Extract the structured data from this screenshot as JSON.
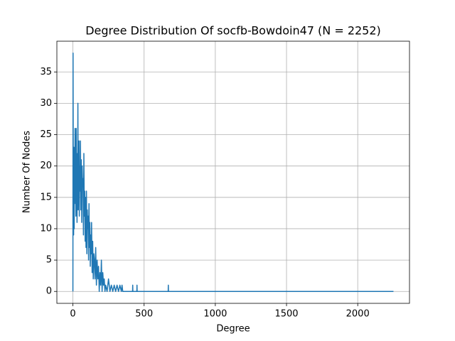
{
  "chart_data": {
    "type": "line",
    "title": "Degree Distribution Of socfb-Bowdoin47 (N = 2252)",
    "xlabel": "Degree",
    "ylabel": "Number Of Nodes",
    "x": [
      0,
      1,
      3,
      5,
      7,
      9,
      11,
      13,
      15,
      17,
      19,
      21,
      23,
      25,
      27,
      29,
      31,
      33,
      35,
      37,
      39,
      41,
      43,
      45,
      47,
      50,
      53,
      56,
      59,
      62,
      65,
      68,
      71,
      74,
      77,
      80,
      83,
      86,
      89,
      92,
      95,
      98,
      101,
      104,
      107,
      110,
      113,
      116,
      119,
      122,
      125,
      128,
      131,
      135,
      139,
      143,
      147,
      151,
      155,
      160,
      165,
      170,
      175,
      180,
      185,
      190,
      195,
      200,
      205,
      210,
      215,
      220,
      225,
      230,
      240,
      250,
      260,
      270,
      280,
      290,
      300,
      310,
      320,
      330,
      340,
      345,
      350,
      419,
      420,
      421,
      449,
      450,
      451,
      669,
      670,
      671,
      2251
    ],
    "values": [
      0,
      38,
      12,
      9,
      23,
      10,
      22,
      14,
      26,
      15,
      25,
      12,
      26,
      16,
      22,
      11,
      20,
      14,
      30,
      13,
      22,
      18,
      24,
      12,
      20,
      16,
      24,
      13,
      21,
      11,
      20,
      17,
      18,
      9,
      22,
      12,
      16,
      8,
      15,
      7,
      16,
      6,
      13,
      10,
      12,
      5,
      14,
      7,
      11,
      4,
      9,
      6,
      11,
      3,
      8,
      2,
      6,
      5,
      2,
      7,
      1,
      5,
      2,
      4,
      0,
      3,
      1,
      5,
      0,
      3,
      1,
      2,
      0,
      1,
      0,
      2,
      0,
      1,
      0,
      1,
      0,
      1,
      0,
      1,
      0,
      1,
      0,
      0,
      1,
      0,
      0,
      1,
      0,
      0,
      1,
      0,
      0
    ],
    "color": "#1f77b4",
    "xlim": [
      -112.55,
      2363.55
    ],
    "ylim": [
      -1.9,
      39.9
    ],
    "xticks": [
      0,
      500,
      1000,
      1500,
      2000
    ],
    "yticks": [
      0,
      5,
      10,
      15,
      20,
      25,
      30,
      35
    ],
    "grid": true
  }
}
